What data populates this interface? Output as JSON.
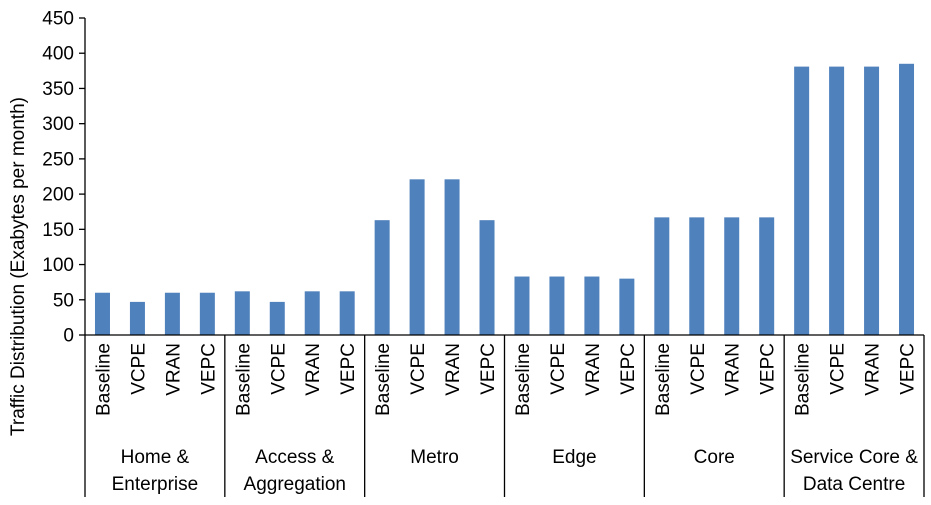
{
  "chart_data": {
    "type": "bar",
    "xlabel": "",
    "ylabel": "Traffic Distribution (Exabytes per month)",
    "ylim": [
      0,
      450
    ],
    "yticks": [
      0,
      50,
      100,
      150,
      200,
      250,
      300,
      350,
      400,
      450
    ],
    "grid": false,
    "legend": "none",
    "bar_color": "#4f81bd",
    "groups": [
      {
        "name": "Home & Enterprise",
        "name_lines": [
          "Home &",
          "Enterprise"
        ],
        "categories": [
          "Baseline",
          "VCPE",
          "VRAN",
          "VEPC"
        ],
        "values": [
          60,
          47,
          60,
          60
        ]
      },
      {
        "name": "Access & Aggregation",
        "name_lines": [
          "Access &",
          "Aggregation"
        ],
        "categories": [
          "Baseline",
          "VCPE",
          "VRAN",
          "VEPC"
        ],
        "values": [
          62,
          47,
          62,
          62
        ]
      },
      {
        "name": "Metro",
        "name_lines": [
          "Metro"
        ],
        "categories": [
          "Baseline",
          "VCPE",
          "VRAN",
          "VEPC"
        ],
        "values": [
          163,
          221,
          221,
          163
        ]
      },
      {
        "name": "Edge",
        "name_lines": [
          "Edge"
        ],
        "categories": [
          "Baseline",
          "VCPE",
          "VRAN",
          "VEPC"
        ],
        "values": [
          83,
          83,
          83,
          80
        ]
      },
      {
        "name": "Core",
        "name_lines": [
          "Core"
        ],
        "categories": [
          "Baseline",
          "VCPE",
          "VRAN",
          "VEPC"
        ],
        "values": [
          167,
          167,
          167,
          167
        ]
      },
      {
        "name": "Service Core & Data Centre",
        "name_lines": [
          "Service Core &",
          "Data Centre"
        ],
        "categories": [
          "Baseline",
          "VCPE",
          "VRAN",
          "VEPC"
        ],
        "values": [
          381,
          381,
          381,
          385
        ]
      }
    ]
  }
}
